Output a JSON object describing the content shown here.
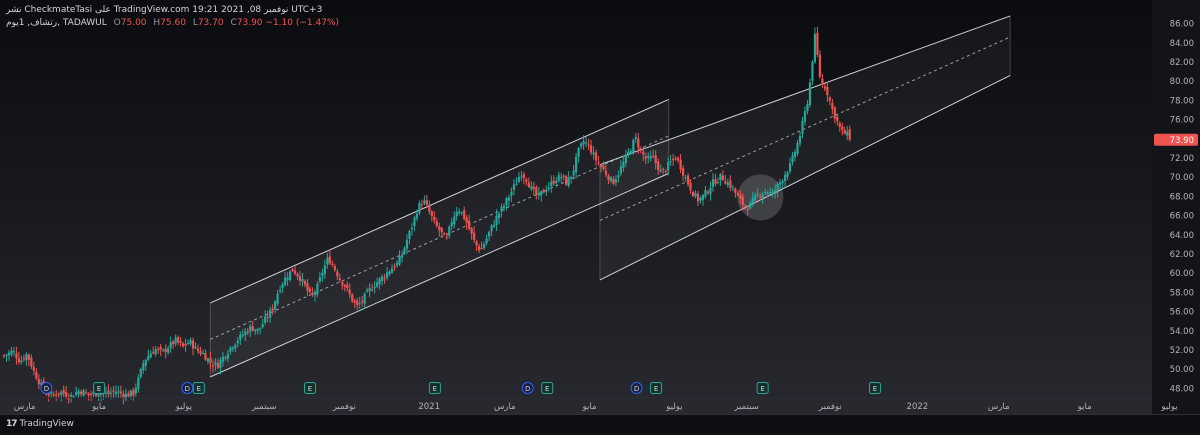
{
  "header": {
    "publisher": "CheckmateTasi",
    "published_prefix": "نشر",
    "on_word": "على",
    "site": "TradingView.com",
    "datetime": "نوفمبر 08, 2021 19:21 UTC+3",
    "symbol_desc": "رتشاف, 1يوم, TADAWUL",
    "open_label": "O",
    "open_value": "75.00",
    "high_label": "H",
    "high_value": "75.60",
    "low_label": "L",
    "low_value": "73.70",
    "close_label": "C",
    "close_value": "73.90",
    "change": "−1.10 (−1.47%)"
  },
  "footer": {
    "brand": "TradingView",
    "logo_text": "17"
  },
  "colors": {
    "up": "#26a69a",
    "down": "#ef5350",
    "channel": "#cfd2d9",
    "price_badge": "#ef5350",
    "event_earnings": "#26a69a",
    "event_dividend": "#2962ff",
    "event_split": "#9c27b0"
  },
  "chart_data": {
    "type": "candlestick",
    "y_axis": {
      "range": [
        47,
        87
      ],
      "ticks": [
        "86.00",
        "84.00",
        "82.00",
        "80.00",
        "78.00",
        "76.00",
        "74.00",
        "72.00",
        "70.00",
        "68.00",
        "66.00",
        "64.00",
        "62.00",
        "60.00",
        "58.00",
        "56.00",
        "54.00",
        "52.00",
        "50.00",
        "48.00"
      ],
      "last_price": 73.9,
      "last_price_label": "73.90"
    },
    "x_axis": {
      "ticks": [
        {
          "label": "مارس",
          "t": 0.018
        },
        {
          "label": "مايو",
          "t": 0.083
        },
        {
          "label": "يوليو",
          "t": 0.157
        },
        {
          "label": "سبتمبر",
          "t": 0.227
        },
        {
          "label": "نوفمبر",
          "t": 0.297
        },
        {
          "label": "2021",
          "t": 0.371
        },
        {
          "label": "مارس",
          "t": 0.437
        },
        {
          "label": "مايو",
          "t": 0.511
        },
        {
          "label": "يوليو",
          "t": 0.585
        },
        {
          "label": "سبتمبر",
          "t": 0.648
        },
        {
          "label": "نوفمبر",
          "t": 0.721
        },
        {
          "label": "2022",
          "t": 0.797
        },
        {
          "label": "مارس",
          "t": 0.868
        },
        {
          "label": "مايو",
          "t": 0.943
        },
        {
          "label": "يوليو",
          "t": 1.017
        }
      ]
    },
    "series_close": [
      [
        0.0,
        51.4
      ],
      [
        0.008,
        51.9
      ],
      [
        0.014,
        50.8
      ],
      [
        0.02,
        51.6
      ],
      [
        0.026,
        49.8
      ],
      [
        0.031,
        48.6
      ],
      [
        0.036,
        47.6
      ],
      [
        0.042,
        47.3
      ],
      [
        0.05,
        47.6
      ],
      [
        0.058,
        47.2
      ],
      [
        0.066,
        47.8
      ],
      [
        0.074,
        47.3
      ],
      [
        0.082,
        47.6
      ],
      [
        0.09,
        47.4
      ],
      [
        0.098,
        47.7
      ],
      [
        0.105,
        47.3
      ],
      [
        0.113,
        47.5
      ],
      [
        0.118,
        49.2
      ],
      [
        0.122,
        50.8
      ],
      [
        0.127,
        51.6
      ],
      [
        0.132,
        52.1
      ],
      [
        0.138,
        51.7
      ],
      [
        0.144,
        52.4
      ],
      [
        0.15,
        53.0
      ],
      [
        0.156,
        52.3
      ],
      [
        0.162,
        52.9
      ],
      [
        0.168,
        52.0
      ],
      [
        0.174,
        51.6
      ],
      [
        0.18,
        50.7
      ],
      [
        0.186,
        50.4
      ],
      [
        0.192,
        51.4
      ],
      [
        0.198,
        52.3
      ],
      [
        0.204,
        53.1
      ],
      [
        0.21,
        53.8
      ],
      [
        0.216,
        54.4
      ],
      [
        0.222,
        54.0
      ],
      [
        0.228,
        55.2
      ],
      [
        0.234,
        56.2
      ],
      [
        0.24,
        58.4
      ],
      [
        0.246,
        59.6
      ],
      [
        0.252,
        60.4
      ],
      [
        0.258,
        59.6
      ],
      [
        0.263,
        58.6
      ],
      [
        0.268,
        57.5
      ],
      [
        0.273,
        58.4
      ],
      [
        0.278,
        60.2
      ],
      [
        0.283,
        61.6
      ],
      [
        0.288,
        60.6
      ],
      [
        0.293,
        59.4
      ],
      [
        0.298,
        58.6
      ],
      [
        0.303,
        57.4
      ],
      [
        0.308,
        56.5
      ],
      [
        0.313,
        57.2
      ],
      [
        0.318,
        58.1
      ],
      [
        0.323,
        58.8
      ],
      [
        0.328,
        59.3
      ],
      [
        0.333,
        59.9
      ],
      [
        0.338,
        60.5
      ],
      [
        0.343,
        61.0
      ],
      [
        0.348,
        62.1
      ],
      [
        0.352,
        63.6
      ],
      [
        0.357,
        65.2
      ],
      [
        0.361,
        66.8
      ],
      [
        0.366,
        67.6
      ],
      [
        0.371,
        66.4
      ],
      [
        0.376,
        65.1
      ],
      [
        0.381,
        64.3
      ],
      [
        0.386,
        63.4
      ],
      [
        0.391,
        65.6
      ],
      [
        0.396,
        66.8
      ],
      [
        0.401,
        66.0
      ],
      [
        0.406,
        64.6
      ],
      [
        0.411,
        63.1
      ],
      [
        0.416,
        62.4
      ],
      [
        0.421,
        63.6
      ],
      [
        0.426,
        64.9
      ],
      [
        0.431,
        66.1
      ],
      [
        0.436,
        67.0
      ],
      [
        0.441,
        68.1
      ],
      [
        0.446,
        69.2
      ],
      [
        0.451,
        70.5
      ],
      [
        0.456,
        69.8
      ],
      [
        0.461,
        68.6
      ],
      [
        0.466,
        67.9
      ],
      [
        0.471,
        68.6
      ],
      [
        0.476,
        69.1
      ],
      [
        0.481,
        69.8
      ],
      [
        0.486,
        70.1
      ],
      [
        0.491,
        69.4
      ],
      [
        0.496,
        70.4
      ],
      [
        0.501,
        72.6
      ],
      [
        0.506,
        73.8
      ],
      [
        0.511,
        73.1
      ],
      [
        0.516,
        71.9
      ],
      [
        0.521,
        71.1
      ],
      [
        0.526,
        70.3
      ],
      [
        0.531,
        69.4
      ],
      [
        0.536,
        70.4
      ],
      [
        0.541,
        71.6
      ],
      [
        0.546,
        72.8
      ],
      [
        0.551,
        74.1
      ],
      [
        0.556,
        72.6
      ],
      [
        0.561,
        71.8
      ],
      [
        0.566,
        72.1
      ],
      [
        0.57,
        71.2
      ],
      [
        0.574,
        70.4
      ],
      [
        0.578,
        71.0
      ],
      [
        0.582,
        71.6
      ],
      [
        0.586,
        72.1
      ],
      [
        0.59,
        71.2
      ],
      [
        0.594,
        70.1
      ],
      [
        0.598,
        69.1
      ],
      [
        0.602,
        68.2
      ],
      [
        0.606,
        67.6
      ],
      [
        0.61,
        68.0
      ],
      [
        0.614,
        68.6
      ],
      [
        0.618,
        69.4
      ],
      [
        0.622,
        69.7
      ],
      [
        0.626,
        70.1
      ],
      [
        0.63,
        69.6
      ],
      [
        0.634,
        69.1
      ],
      [
        0.638,
        68.4
      ],
      [
        0.642,
        67.6
      ],
      [
        0.646,
        67.0
      ],
      [
        0.65,
        66.9
      ],
      [
        0.654,
        67.6
      ],
      [
        0.658,
        68.2
      ],
      [
        0.662,
        68.4
      ],
      [
        0.666,
        68.6
      ],
      [
        0.67,
        68.2
      ],
      [
        0.674,
        68.9
      ],
      [
        0.678,
        69.6
      ],
      [
        0.682,
        70.4
      ],
      [
        0.686,
        71.2
      ],
      [
        0.69,
        72.6
      ],
      [
        0.694,
        74.1
      ],
      [
        0.698,
        76.2
      ],
      [
        0.702,
        78.4
      ],
      [
        0.705,
        81.8
      ],
      [
        0.708,
        85.0
      ],
      [
        0.711,
        81.0
      ],
      [
        0.714,
        79.6
      ],
      [
        0.717,
        79.4
      ],
      [
        0.72,
        78.2
      ],
      [
        0.723,
        77.0
      ],
      [
        0.726,
        76.1
      ],
      [
        0.729,
        75.2
      ],
      [
        0.732,
        74.6
      ],
      [
        0.735,
        74.6
      ],
      [
        0.738,
        73.9
      ]
    ],
    "channels": [
      {
        "name": "channel-2020",
        "upper": [
          [
            0.18,
            56.9
          ],
          [
            0.58,
            78.1
          ]
        ],
        "mid": [
          [
            0.18,
            53.1
          ],
          [
            0.58,
            74.3
          ]
        ],
        "lower": [
          [
            0.18,
            49.2
          ],
          [
            0.58,
            70.4
          ]
        ]
      },
      {
        "name": "channel-2021",
        "upper": [
          [
            0.52,
            71.3
          ],
          [
            0.878,
            86.8
          ]
        ],
        "mid": [
          [
            0.52,
            65.5
          ],
          [
            0.878,
            84.6
          ]
        ],
        "lower": [
          [
            0.52,
            59.3
          ],
          [
            0.878,
            80.6
          ]
        ]
      }
    ],
    "highlight": {
      "t": 0.66,
      "price": 67.9
    },
    "events": [
      {
        "type": "D",
        "t": 0.037
      },
      {
        "type": "E",
        "t": 0.083
      },
      {
        "type": "D",
        "t": 0.16
      },
      {
        "type": "E",
        "t": 0.17
      },
      {
        "type": "E",
        "t": 0.267
      },
      {
        "type": "E",
        "t": 0.376
      },
      {
        "type": "D",
        "t": 0.457
      },
      {
        "type": "E",
        "t": 0.474
      },
      {
        "type": "D",
        "t": 0.552
      },
      {
        "type": "E",
        "t": 0.569
      },
      {
        "type": "E",
        "t": 0.662
      },
      {
        "type": "E",
        "t": 0.76
      }
    ]
  }
}
